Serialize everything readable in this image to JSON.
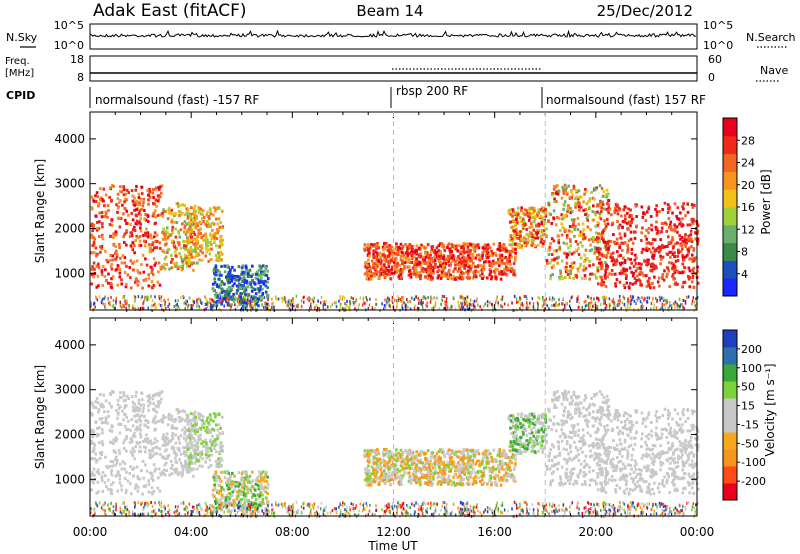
{
  "header": {
    "title": "Adak East (fitACF)",
    "beam": "Beam 14",
    "date": "25/Dec/2012"
  },
  "nsky_panel": {
    "left_label": "N.Sky",
    "right_label": "N.Search",
    "left_ticks": [
      "10^5",
      "10^0"
    ],
    "right_ticks": [
      "10^5",
      "10^0"
    ]
  },
  "freq_panel": {
    "left_label_line1": "Freq.",
    "left_label_line2": "[MHz]",
    "right_label": "Nave",
    "left_ticks": [
      "18",
      "8"
    ],
    "right_ticks": [
      "60",
      "0"
    ]
  },
  "cpid": {
    "label": "CPID",
    "segments": [
      {
        "label": "normalsound (fast) -157 RF",
        "start_hour": 0,
        "end_hour": 12
      },
      {
        "label": "rbsp 200 RF",
        "start_hour": 12,
        "end_hour": 18
      },
      {
        "label": "normalsound (fast) 157 RF",
        "start_hour": 18,
        "end_hour": 24
      }
    ]
  },
  "colors": {
    "power": [
      "#1a28ff",
      "#1f4fbf",
      "#3a8a4c",
      "#6ab06a",
      "#9fd23a",
      "#f3c218",
      "#f7941d",
      "#f26522",
      "#ee2a1b",
      "#e8001c"
    ],
    "velocity": [
      "#e8001c",
      "#ff4a1a",
      "#f7941d",
      "#f7a81d",
      "#c8c8c8",
      "#c8c8c8",
      "#7cd23a",
      "#3aa83a",
      "#2f6fb0",
      "#1f3fbf"
    ]
  },
  "chart_data": [
    {
      "type": "heatmap",
      "name": "power",
      "xlabel": "",
      "ylabel": "Slant Range [km]",
      "colorbar_label": "Power [dB]",
      "colorbar_ticks": [
        "28",
        "24",
        "20",
        "16",
        "12",
        "8",
        "4"
      ],
      "xlim": [
        0,
        24
      ],
      "ylim": [
        180,
        4600
      ],
      "yticks": [
        "1000",
        "2000",
        "3000",
        "4000"
      ]
    },
    {
      "type": "heatmap",
      "name": "velocity",
      "xlabel": "Time UT",
      "ylabel": "Slant Range [km]",
      "colorbar_label": "Velocity [m s⁻¹]",
      "colorbar_ticks": [
        "200",
        "100",
        "50",
        "15",
        "-15",
        "-50",
        "-100",
        "-200"
      ],
      "xlim": [
        0,
        24
      ],
      "ylim": [
        180,
        4600
      ],
      "yticks": [
        "1000",
        "2000",
        "3000",
        "4000"
      ],
      "xticks": [
        "00:00",
        "04:00",
        "08:00",
        "12:00",
        "16:00",
        "20:00",
        "00:00"
      ]
    }
  ]
}
